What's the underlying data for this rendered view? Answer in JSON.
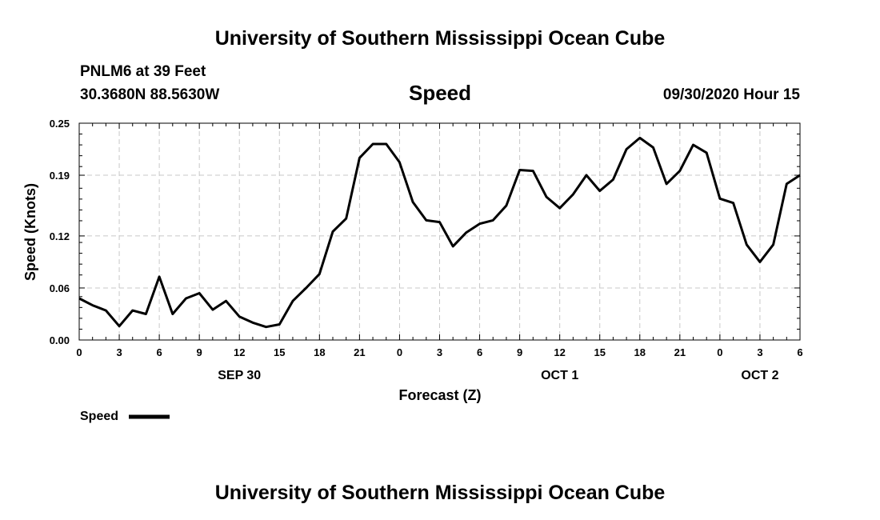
{
  "header": {
    "title": "University of Southern Mississippi Ocean Cube",
    "station": "PNLM6 at 39 Feet",
    "coords": "30.3680N 88.5630W",
    "date": "09/30/2020 Hour 15"
  },
  "footer": {
    "title": "University of Southern Mississippi Ocean Cube"
  },
  "legend": {
    "label": "Speed",
    "placement": "bottom-left",
    "color": "#000000"
  },
  "chart_data": {
    "type": "line",
    "title": "Speed",
    "xlabel": "Forecast (Z)",
    "ylabel": "Speed (Knots)",
    "x_unit": "hours from 00Z SEP 30",
    "xlim": [
      0,
      54
    ],
    "ylim": [
      0,
      0.25
    ],
    "y_ticks": [
      "0.00",
      "0.06",
      "0.12",
      "0.19",
      "0.25"
    ],
    "x_ticks": [
      {
        "hour": 0,
        "label": "0"
      },
      {
        "hour": 3,
        "label": "3"
      },
      {
        "hour": 6,
        "label": "6"
      },
      {
        "hour": 9,
        "label": "9"
      },
      {
        "hour": 12,
        "label": "12"
      },
      {
        "hour": 15,
        "label": "15"
      },
      {
        "hour": 18,
        "label": "18"
      },
      {
        "hour": 21,
        "label": "21"
      },
      {
        "hour": 24,
        "label": "0"
      },
      {
        "hour": 27,
        "label": "3"
      },
      {
        "hour": 30,
        "label": "6"
      },
      {
        "hour": 33,
        "label": "9"
      },
      {
        "hour": 36,
        "label": "12"
      },
      {
        "hour": 39,
        "label": "15"
      },
      {
        "hour": 42,
        "label": "18"
      },
      {
        "hour": 45,
        "label": "21"
      },
      {
        "hour": 48,
        "label": "0"
      },
      {
        "hour": 51,
        "label": "3"
      },
      {
        "hour": 54,
        "label": "6"
      }
    ],
    "day_labels": [
      {
        "hour": 12,
        "label": "SEP 30"
      },
      {
        "hour": 36,
        "label": "OCT 1"
      },
      {
        "hour": 51,
        "label": "OCT 2"
      }
    ],
    "grid": true,
    "series": [
      {
        "name": "Speed",
        "color": "#000000",
        "x": [
          0,
          1,
          2,
          3,
          4,
          5,
          6,
          7,
          8,
          9,
          10,
          11,
          12,
          13,
          14,
          15,
          16,
          17,
          18,
          19,
          20,
          21,
          22,
          23,
          24,
          25,
          26,
          27,
          28,
          29,
          30,
          31,
          32,
          33,
          34,
          35,
          36,
          37,
          38,
          39,
          40,
          41,
          42,
          43,
          44,
          45,
          46,
          47,
          48,
          49,
          50,
          51,
          52,
          53,
          54
        ],
        "values": [
          0.048,
          0.04,
          0.034,
          0.016,
          0.034,
          0.03,
          0.073,
          0.03,
          0.048,
          0.054,
          0.035,
          0.045,
          0.027,
          0.02,
          0.015,
          0.018,
          0.045,
          0.06,
          0.076,
          0.125,
          0.14,
          0.21,
          0.226,
          0.226,
          0.205,
          0.159,
          0.138,
          0.136,
          0.108,
          0.124,
          0.134,
          0.138,
          0.155,
          0.196,
          0.195,
          0.165,
          0.152,
          0.168,
          0.19,
          0.172,
          0.185,
          0.22,
          0.233,
          0.222,
          0.18,
          0.195,
          0.225,
          0.216,
          0.163,
          0.158,
          0.11,
          0.09,
          0.11,
          0.18,
          0.19
        ]
      }
    ]
  }
}
